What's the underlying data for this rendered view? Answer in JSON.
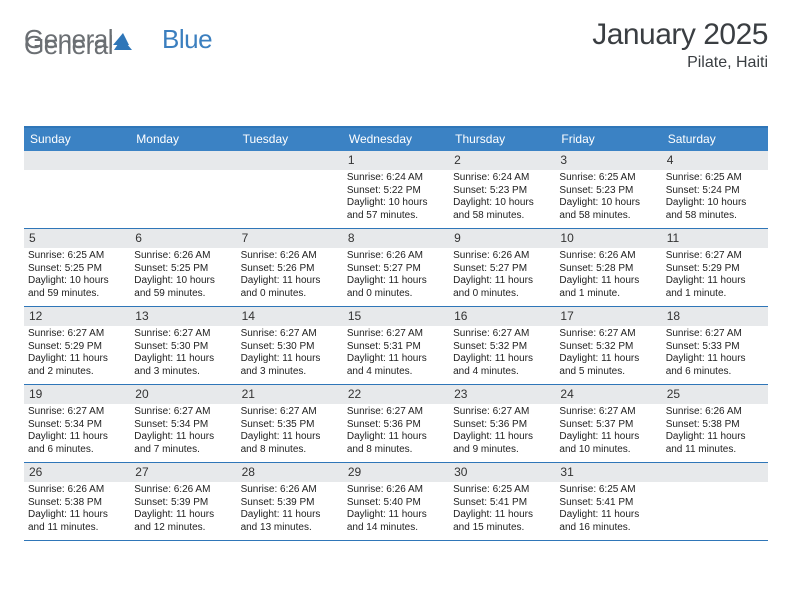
{
  "brand": {
    "part1": "General",
    "part2": "Blue"
  },
  "title": "January 2025",
  "location": "Pilate, Haiti",
  "header_bg": "#3b82c4",
  "border_color": "#2f76b8",
  "daynum_bg": "#e7e9eb",
  "weekdays": [
    "Sunday",
    "Monday",
    "Tuesday",
    "Wednesday",
    "Thursday",
    "Friday",
    "Saturday"
  ],
  "weeks": [
    [
      null,
      null,
      null,
      {
        "n": "1",
        "sr": "6:24 AM",
        "ss": "5:22 PM",
        "dl": "10 hours and 57 minutes."
      },
      {
        "n": "2",
        "sr": "6:24 AM",
        "ss": "5:23 PM",
        "dl": "10 hours and 58 minutes."
      },
      {
        "n": "3",
        "sr": "6:25 AM",
        "ss": "5:23 PM",
        "dl": "10 hours and 58 minutes."
      },
      {
        "n": "4",
        "sr": "6:25 AM",
        "ss": "5:24 PM",
        "dl": "10 hours and 58 minutes."
      }
    ],
    [
      {
        "n": "5",
        "sr": "6:25 AM",
        "ss": "5:25 PM",
        "dl": "10 hours and 59 minutes."
      },
      {
        "n": "6",
        "sr": "6:26 AM",
        "ss": "5:25 PM",
        "dl": "10 hours and 59 minutes."
      },
      {
        "n": "7",
        "sr": "6:26 AM",
        "ss": "5:26 PM",
        "dl": "11 hours and 0 minutes."
      },
      {
        "n": "8",
        "sr": "6:26 AM",
        "ss": "5:27 PM",
        "dl": "11 hours and 0 minutes."
      },
      {
        "n": "9",
        "sr": "6:26 AM",
        "ss": "5:27 PM",
        "dl": "11 hours and 0 minutes."
      },
      {
        "n": "10",
        "sr": "6:26 AM",
        "ss": "5:28 PM",
        "dl": "11 hours and 1 minute."
      },
      {
        "n": "11",
        "sr": "6:27 AM",
        "ss": "5:29 PM",
        "dl": "11 hours and 1 minute."
      }
    ],
    [
      {
        "n": "12",
        "sr": "6:27 AM",
        "ss": "5:29 PM",
        "dl": "11 hours and 2 minutes."
      },
      {
        "n": "13",
        "sr": "6:27 AM",
        "ss": "5:30 PM",
        "dl": "11 hours and 3 minutes."
      },
      {
        "n": "14",
        "sr": "6:27 AM",
        "ss": "5:30 PM",
        "dl": "11 hours and 3 minutes."
      },
      {
        "n": "15",
        "sr": "6:27 AM",
        "ss": "5:31 PM",
        "dl": "11 hours and 4 minutes."
      },
      {
        "n": "16",
        "sr": "6:27 AM",
        "ss": "5:32 PM",
        "dl": "11 hours and 4 minutes."
      },
      {
        "n": "17",
        "sr": "6:27 AM",
        "ss": "5:32 PM",
        "dl": "11 hours and 5 minutes."
      },
      {
        "n": "18",
        "sr": "6:27 AM",
        "ss": "5:33 PM",
        "dl": "11 hours and 6 minutes."
      }
    ],
    [
      {
        "n": "19",
        "sr": "6:27 AM",
        "ss": "5:34 PM",
        "dl": "11 hours and 6 minutes."
      },
      {
        "n": "20",
        "sr": "6:27 AM",
        "ss": "5:34 PM",
        "dl": "11 hours and 7 minutes."
      },
      {
        "n": "21",
        "sr": "6:27 AM",
        "ss": "5:35 PM",
        "dl": "11 hours and 8 minutes."
      },
      {
        "n": "22",
        "sr": "6:27 AM",
        "ss": "5:36 PM",
        "dl": "11 hours and 8 minutes."
      },
      {
        "n": "23",
        "sr": "6:27 AM",
        "ss": "5:36 PM",
        "dl": "11 hours and 9 minutes."
      },
      {
        "n": "24",
        "sr": "6:27 AM",
        "ss": "5:37 PM",
        "dl": "11 hours and 10 minutes."
      },
      {
        "n": "25",
        "sr": "6:26 AM",
        "ss": "5:38 PM",
        "dl": "11 hours and 11 minutes."
      }
    ],
    [
      {
        "n": "26",
        "sr": "6:26 AM",
        "ss": "5:38 PM",
        "dl": "11 hours and 11 minutes."
      },
      {
        "n": "27",
        "sr": "6:26 AM",
        "ss": "5:39 PM",
        "dl": "11 hours and 12 minutes."
      },
      {
        "n": "28",
        "sr": "6:26 AM",
        "ss": "5:39 PM",
        "dl": "11 hours and 13 minutes."
      },
      {
        "n": "29",
        "sr": "6:26 AM",
        "ss": "5:40 PM",
        "dl": "11 hours and 14 minutes."
      },
      {
        "n": "30",
        "sr": "6:25 AM",
        "ss": "5:41 PM",
        "dl": "11 hours and 15 minutes."
      },
      {
        "n": "31",
        "sr": "6:25 AM",
        "ss": "5:41 PM",
        "dl": "11 hours and 16 minutes."
      },
      null
    ]
  ],
  "labels": {
    "sunrise": "Sunrise:",
    "sunset": "Sunset:",
    "daylight": "Daylight:"
  }
}
